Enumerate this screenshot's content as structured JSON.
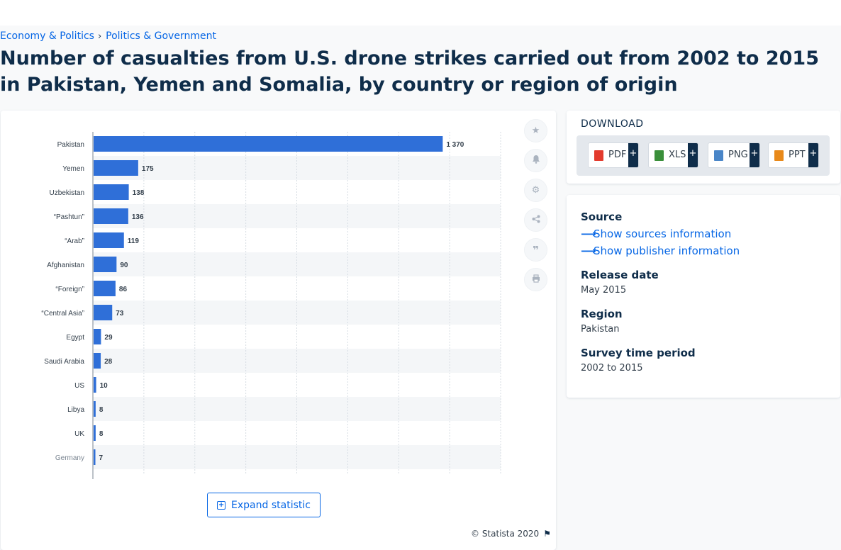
{
  "breadcrumb": {
    "item1": "Economy & Politics",
    "separator": "›",
    "item2": "Politics & Government"
  },
  "page_title": "Number of casualties from U.S. drone strikes carried out from 2002 to 2015 in Pakistan, Yemen and Somalia, by country or region of origin",
  "toolbar": {
    "favorite_icon": "star-icon",
    "alert_icon": "bell-icon",
    "settings_icon": "gear-icon",
    "share_icon": "share-icon",
    "cite_icon": "quote-icon",
    "print_icon": "printer-icon"
  },
  "expand_label": "Expand statistic",
  "copyright": "© Statista 2020",
  "download": {
    "title": "DOWNLOAD",
    "buttons": [
      {
        "label": "PDF",
        "plus": "+",
        "color": "#e33b2e"
      },
      {
        "label": "XLS",
        "plus": "+",
        "color": "#3a8f3a"
      },
      {
        "label": "PNG",
        "plus": "+",
        "color": "#4a86c8"
      },
      {
        "label": "PPT",
        "plus": "+",
        "color": "#e8891a"
      }
    ]
  },
  "info": {
    "source_label": "Source",
    "show_sources": "Show sources information",
    "show_publisher": "Show publisher information",
    "release_label": "Release date",
    "release_value": "May 2015",
    "region_label": "Region",
    "region_value": "Pakistan",
    "survey_label": "Survey time period",
    "survey_value": "2002 to 2015"
  },
  "colors": {
    "bar": "#2f6fd8",
    "accent": "#0666e5",
    "title": "#0f2d4a"
  },
  "chart_data": {
    "type": "bar",
    "orientation": "horizontal",
    "categories": [
      "Pakistan",
      "Yemen",
      "Uzbekistan",
      "“Pashtun”",
      "“Arab”",
      "Afghanistan",
      "“Foreign”",
      "“Central Asia”",
      "Egypt",
      "Saudi Arabia",
      "US",
      "Libya",
      "UK",
      "Germany"
    ],
    "values": [
      1370,
      175,
      138,
      136,
      119,
      90,
      86,
      73,
      29,
      28,
      10,
      8,
      8,
      7
    ],
    "data_labels": [
      "1 370",
      "175",
      "138",
      "136",
      "119",
      "90",
      "86",
      "73",
      "29",
      "28",
      "10",
      "8",
      "8",
      "7"
    ],
    "xlim": [
      0,
      1600
    ],
    "grid": true,
    "legend": "none"
  }
}
